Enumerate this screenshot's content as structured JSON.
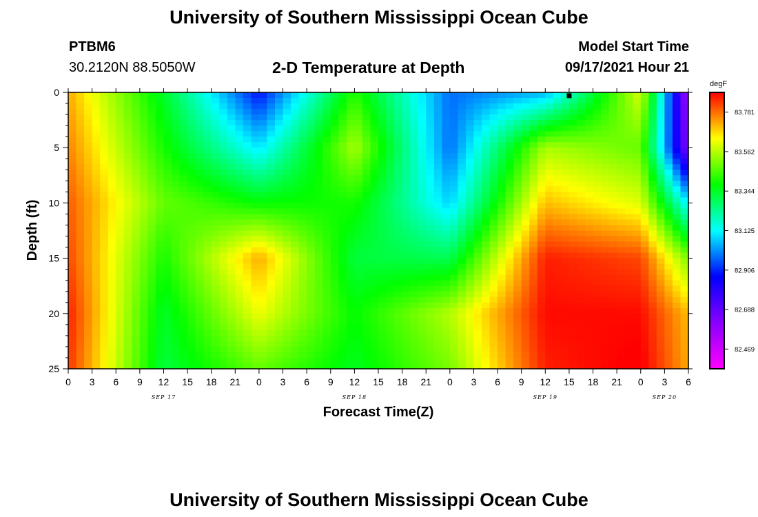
{
  "header": {
    "title": "University of Southern Mississippi Ocean Cube",
    "station": "PTBM6",
    "coords": "30.2120N  88.5050W",
    "plot_title": "2-D Temperature at Depth",
    "model_label": "Model Start Time",
    "model_time": "09/17/2021 Hour 21"
  },
  "footer": {
    "title": "University of Southern Mississippi Ocean Cube"
  },
  "chart_data": {
    "type": "heatmap",
    "title": "2-D Temperature at Depth",
    "xlabel": "Forecast Time(Z)",
    "ylabel": "Depth (ft)",
    "xlim": [
      0,
      78
    ],
    "ylim": [
      0,
      25
    ],
    "y_reversed": true,
    "x_tick_labels": [
      "0",
      "3",
      "6",
      "9",
      "12",
      "15",
      "18",
      "21",
      "0",
      "3",
      "6",
      "9",
      "12",
      "15",
      "18",
      "21",
      "0",
      "3",
      "6",
      "9",
      "12",
      "15",
      "18",
      "21",
      "0",
      "3",
      "6"
    ],
    "y_tick_labels": [
      "0",
      "5",
      "10",
      "15",
      "20",
      "25"
    ],
    "date_labels": [
      {
        "text": "SEP 17",
        "hour": 12
      },
      {
        "text": "SEP 18",
        "hour": 36
      },
      {
        "text": "SEP 19",
        "hour": 60
      },
      {
        "text": "SEP 20",
        "hour": 75
      }
    ],
    "marker": {
      "hour": 63,
      "depth": 0.3
    },
    "colorbar": {
      "unit": "degF",
      "labels": [
        "83.781",
        "83.562",
        "83.344",
        "83.125",
        "82.906",
        "82.688",
        "82.469"
      ],
      "min": 82.36,
      "max": 83.89,
      "colors": [
        "#ff00ff",
        "#8a00ff",
        "#0000ff",
        "#00ffff",
        "#00ff00",
        "#ffff00",
        "#ff0000"
      ]
    },
    "grid_depths": [
      0,
      5,
      10,
      15,
      20,
      25
    ],
    "grid_hours": [
      0,
      12,
      24,
      36,
      48,
      60,
      72,
      78
    ],
    "temperature_grid": [
      [
        83.72,
        83.34,
        82.88,
        83.42,
        82.98,
        83.05,
        83.6,
        82.55
      ],
      [
        83.76,
        83.4,
        83.1,
        83.55,
        82.98,
        83.55,
        83.48,
        82.62
      ],
      [
        83.8,
        83.48,
        83.38,
        83.4,
        83.08,
        83.7,
        83.6,
        83.1
      ],
      [
        83.82,
        83.4,
        83.72,
        83.32,
        83.3,
        83.86,
        83.82,
        83.5
      ],
      [
        83.86,
        83.34,
        83.62,
        83.38,
        83.56,
        83.88,
        83.88,
        83.7
      ],
      [
        83.84,
        83.32,
        83.48,
        83.35,
        83.5,
        83.86,
        83.9,
        83.72
      ]
    ]
  }
}
